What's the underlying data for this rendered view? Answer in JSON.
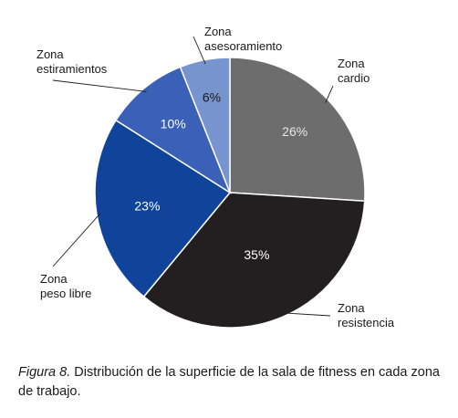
{
  "chart_data": {
    "type": "pie",
    "slices": [
      {
        "label_line1": "Zona",
        "label_line2": "cardio",
        "value": 26,
        "display": "26%",
        "color": "#6d6d6d",
        "text_color": "#e6e6e6"
      },
      {
        "label_line1": "Zona",
        "label_line2": "resistencia",
        "value": 35,
        "display": "35%",
        "color": "#231f20",
        "text_color": "#ffffff"
      },
      {
        "label_line1": "Zona",
        "label_line2": "peso libre",
        "value": 23,
        "display": "23%",
        "color": "#0f449a",
        "text_color": "#ffffff"
      },
      {
        "label_line1": "Zona",
        "label_line2": "estiramientos",
        "value": 10,
        "display": "10%",
        "color": "#3a60b7",
        "text_color": "#ffffff"
      },
      {
        "label_line1": "Zona",
        "label_line2": "asesoramiento",
        "value": 6,
        "display": "6%",
        "color": "#7794cf",
        "text_color": "#1a1a1a"
      }
    ]
  },
  "caption": {
    "figure_label": "Figura 8.",
    "text": " Distribución de la superficie de la sala de fitness en cada zona de trabajo."
  }
}
